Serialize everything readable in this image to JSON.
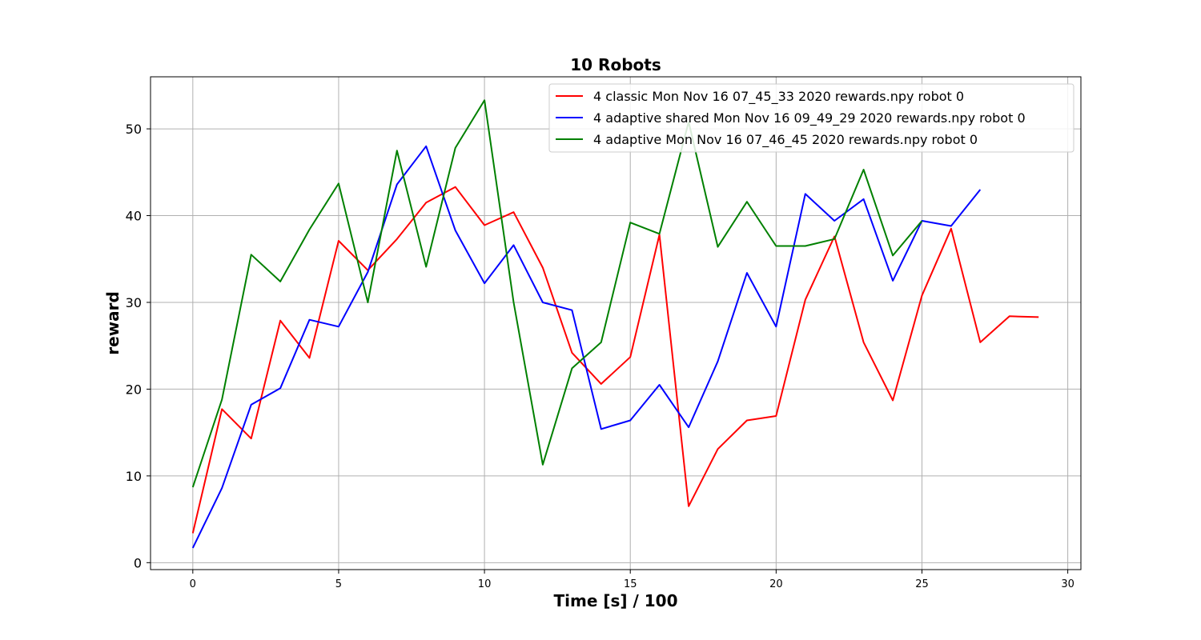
{
  "chart_data": {
    "type": "line",
    "title": "10 Robots",
    "xlabel": "Time [s] / 100",
    "ylabel": "reward",
    "xlim": [
      -1.45,
      30.45
    ],
    "ylim": [
      -0.8,
      56
    ],
    "x_ticks": [
      0,
      5,
      10,
      15,
      20,
      25,
      30
    ],
    "y_ticks": [
      0,
      10,
      20,
      30,
      40,
      50
    ],
    "grid": true,
    "legend_position": "top-right",
    "series": [
      {
        "name": "4 classic Mon Nov 16 07_45_33 2020  rewards.npy robot 0",
        "color": "#ff0000",
        "x": [
          0,
          1,
          2,
          3,
          4,
          5,
          6,
          7,
          8,
          9,
          10,
          11,
          12,
          13,
          14,
          15,
          16,
          17,
          18,
          19,
          20,
          21,
          22,
          23,
          24,
          25,
          26,
          27,
          28,
          29
        ],
        "y": [
          3.4,
          17.7,
          14.3,
          27.9,
          23.6,
          37.1,
          33.7,
          37.3,
          41.5,
          43.3,
          38.9,
          40.4,
          34.0,
          24.2,
          20.6,
          23.7,
          37.8,
          6.5,
          13.1,
          16.4,
          16.9,
          30.3,
          37.6,
          25.4,
          18.7,
          30.8,
          38.5,
          25.4,
          28.4,
          28.3
        ]
      },
      {
        "name": "4 adaptive shared Mon Nov 16 09_49_29 2020  rewards.npy robot 0",
        "color": "#0000ff",
        "x": [
          0,
          1,
          2,
          3,
          4,
          5,
          6,
          7,
          8,
          9,
          10,
          11,
          12,
          13,
          14,
          15,
          16,
          17,
          18,
          19,
          20,
          21,
          22,
          23,
          24,
          25,
          26,
          27
        ],
        "y": [
          1.7,
          8.6,
          18.2,
          20.1,
          28.0,
          27.2,
          33.5,
          43.6,
          48.0,
          38.3,
          32.2,
          36.6,
          30.0,
          29.1,
          15.4,
          16.4,
          20.5,
          15.6,
          23.2,
          33.4,
          27.2,
          42.5,
          39.4,
          41.9,
          32.5,
          39.4,
          38.8,
          43.0
        ]
      },
      {
        "name": "4 adaptive Mon Nov 16 07_46_45 2020  rewards.npy robot 0",
        "color": "#008000",
        "x": [
          0,
          1,
          2,
          3,
          4,
          5,
          6,
          7,
          8,
          9,
          10,
          11,
          12,
          13,
          14,
          15,
          16,
          17,
          18,
          19,
          20,
          21,
          22,
          23,
          24,
          25
        ],
        "y": [
          8.7,
          18.8,
          35.5,
          32.4,
          38.4,
          43.7,
          30.0,
          47.5,
          34.1,
          47.8,
          53.3,
          30.0,
          11.3,
          22.4,
          25.4,
          39.2,
          37.9,
          50.8,
          36.4,
          41.6,
          36.5,
          36.5,
          37.3,
          45.3,
          35.4,
          39.4
        ]
      }
    ]
  }
}
